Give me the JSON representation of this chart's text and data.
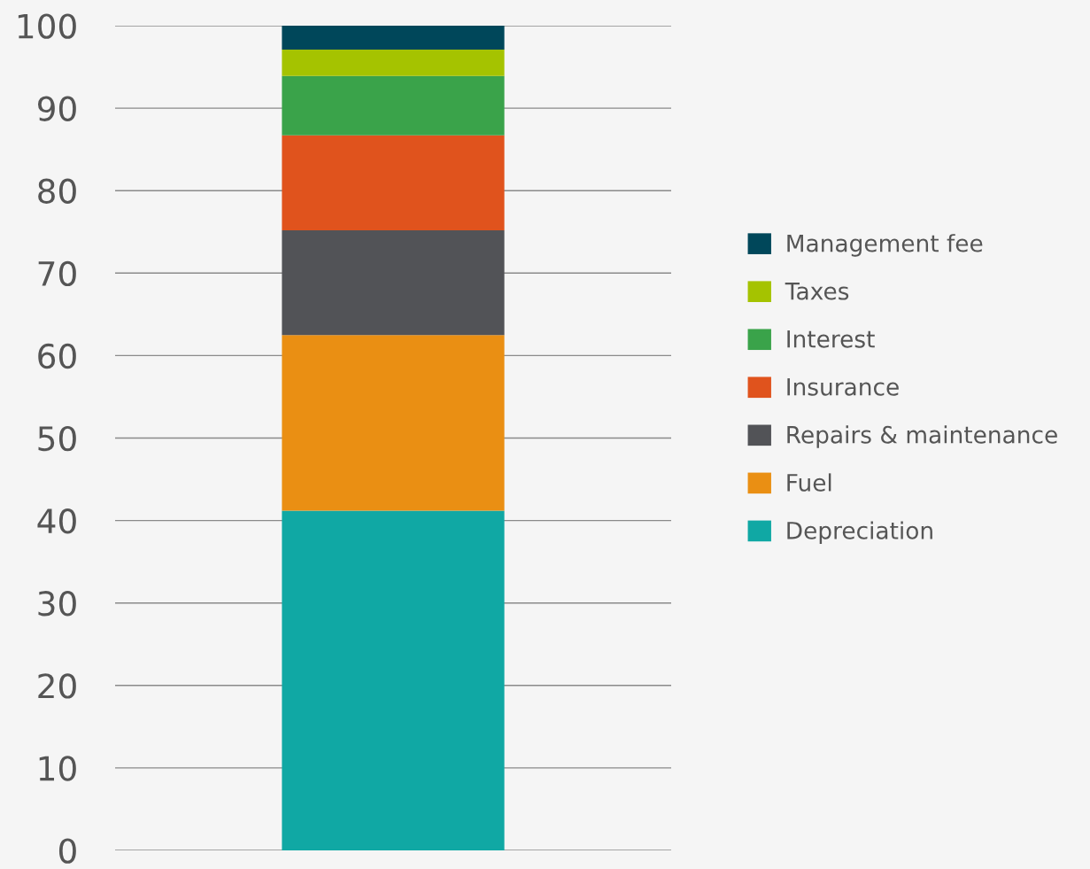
{
  "chart_data": {
    "type": "bar",
    "stacked": true,
    "categories": [
      null
    ],
    "series": [
      {
        "name": "Depreciation",
        "color": "#10a8a4",
        "values": [
          41.2
        ]
      },
      {
        "name": "Fuel",
        "color": "#ea8f13",
        "values": [
          21.3
        ]
      },
      {
        "name": "Repairs & maintenance",
        "color": "#525357",
        "values": [
          12.7
        ]
      },
      {
        "name": "Insurance",
        "color": "#e0531d",
        "values": [
          11.5
        ]
      },
      {
        "name": "Interest",
        "color": "#3aa34a",
        "values": [
          7.2
        ]
      },
      {
        "name": "Taxes",
        "color": "#a5c300",
        "values": [
          3.2
        ]
      },
      {
        "name": "Management fee",
        "color": "#00475a",
        "values": [
          2.9
        ]
      }
    ],
    "ylim": [
      0,
      100
    ],
    "yticks": [
      0,
      10,
      20,
      30,
      40,
      50,
      60,
      70,
      80,
      90,
      100
    ],
    "grid": "y",
    "legend": "right"
  }
}
